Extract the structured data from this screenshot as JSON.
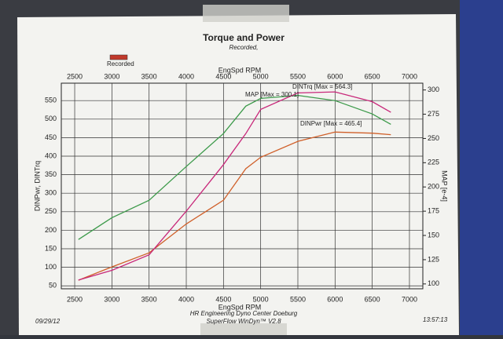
{
  "chart_data": {
    "type": "line",
    "title": "Torque and Power",
    "subtitle": "Recorded,",
    "legend_label": "Recorded",
    "legend_color": "#c0392b",
    "xlabel": "EngSpd  RPM",
    "ylabel": "DINPwr, DINTrq",
    "y2label": "MAP  [e-4]",
    "x": [
      2550,
      3000,
      3500,
      4000,
      4500,
      4800,
      5000,
      5500,
      6000,
      6500,
      6750
    ],
    "series": [
      {
        "name": "DINTrq",
        "color": "#3c9a4a",
        "values": [
          175,
          234,
          281,
          372,
          461,
          535,
          556,
          564,
          550,
          514,
          486
        ]
      },
      {
        "name": "DINPwr",
        "color": "#d0602a",
        "values": [
          65,
          101,
          139,
          217,
          281,
          366,
          397,
          440,
          465,
          462,
          458
        ]
      },
      {
        "name": "MAP",
        "color": "#c8287a",
        "axis": "y2",
        "values": [
          104,
          114,
          130,
          175,
          223,
          255,
          280,
          297,
          298,
          288,
          277
        ]
      }
    ],
    "annotations": [
      "DINTrq [Max = 564.3]",
      "MAP  [Max = 300.1]",
      "DINPwr [Max = 465.4]"
    ],
    "xlim": [
      2320,
      7180
    ],
    "xticks": [
      2500,
      3000,
      3500,
      4000,
      4500,
      5000,
      5500,
      6000,
      6500,
      7000
    ],
    "ylim": [
      42,
      597
    ],
    "yticks": [
      50,
      100,
      150,
      200,
      250,
      300,
      350,
      400,
      450,
      500,
      550
    ],
    "y2lim": [
      95,
      307
    ],
    "y2ticks": [
      100,
      125,
      150,
      175,
      200,
      225,
      250,
      275,
      300
    ],
    "grid": true,
    "footer": [
      "HR Engineering Dyno Center Doeburg",
      "SuperFlow WinDyn™ V2.8"
    ],
    "date": "09/29/12",
    "time": "13:57:13"
  }
}
